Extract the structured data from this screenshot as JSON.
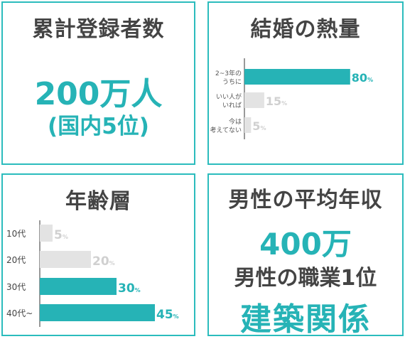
{
  "cards": {
    "total": {
      "title": "累計登録者数",
      "value": "200万人",
      "sub": "(国内5位)"
    },
    "marriage": {
      "title": "結婚の熱量",
      "chart_data": {
        "type": "bar",
        "orientation": "horizontal",
        "unit": "%",
        "categories": [
          [
            "2~3年の",
            "うちに"
          ],
          [
            "いい人が",
            "いれば"
          ],
          [
            "今は",
            "考えてない"
          ]
        ],
        "values": [
          80,
          15,
          5
        ],
        "xlim": [
          0,
          100
        ],
        "colors": {
          "highlight": "#26b3b6",
          "muted": "#e3e3e3",
          "muted_text": "#d0d0d0"
        }
      }
    },
    "age": {
      "title": "年齢層",
      "chart_data": {
        "type": "bar",
        "orientation": "horizontal",
        "unit": "%",
        "categories": [
          "10代",
          "20代",
          "30代",
          "40代~"
        ],
        "values": [
          5,
          20,
          30,
          45
        ],
        "xlim": [
          0,
          50
        ],
        "colors": {
          "highlight": "#26b3b6",
          "muted": "#e3e3e3",
          "muted_text": "#d0d0d0"
        }
      }
    },
    "income": {
      "title": "男性の平均年収",
      "value": "400万",
      "job_label": "男性の職業1位",
      "job_value": "建築関係"
    }
  },
  "colors": {
    "accent": "#26b3b6",
    "border": "#2bbcbd",
    "title_text": "#444444"
  }
}
